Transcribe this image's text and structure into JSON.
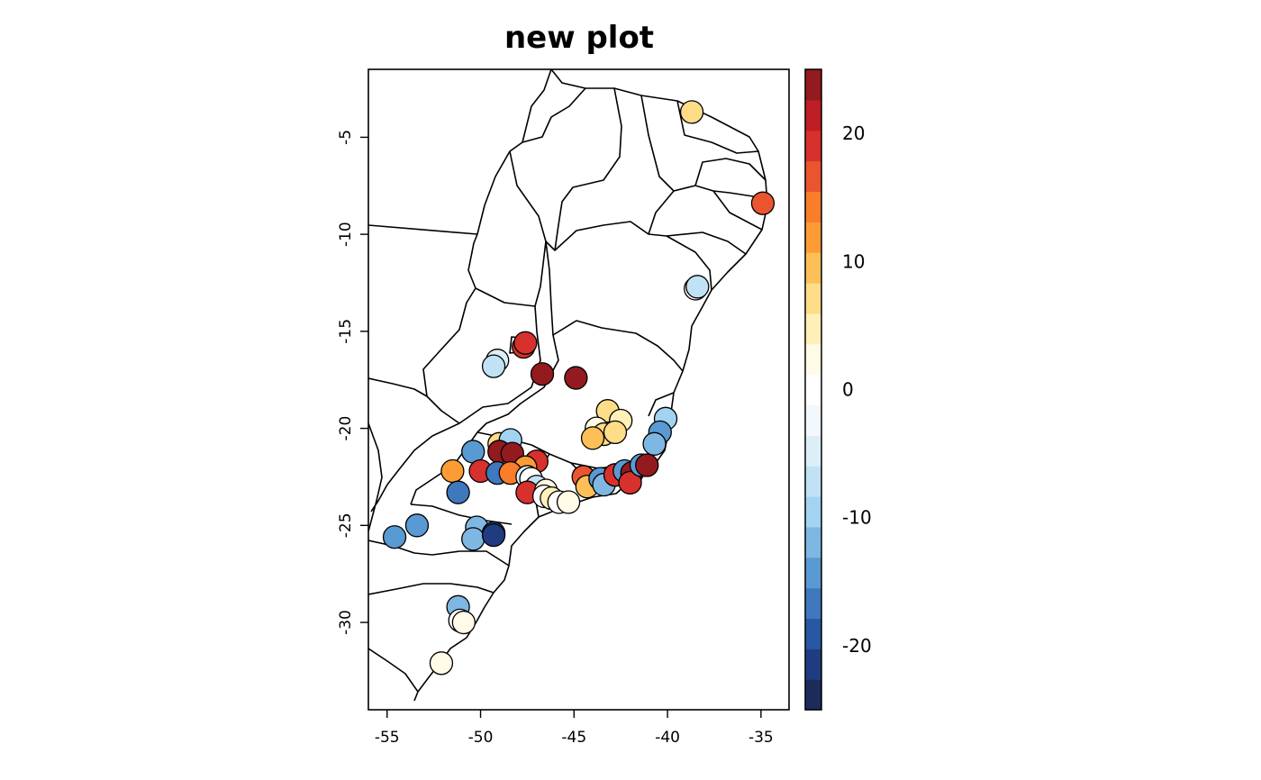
{
  "title": "new plot",
  "map": {
    "xlim": [
      -56,
      -33.5
    ],
    "ylim": [
      -34.5,
      -1.5
    ],
    "x_ticks": [
      -55,
      -50,
      -45,
      -40,
      -35
    ],
    "y_ticks": [
      -5,
      -10,
      -15,
      -20,
      -25,
      -30
    ],
    "x_tick_labels": [
      "-55",
      "-50",
      "-45",
      "-40",
      "-35"
    ],
    "y_tick_labels": [
      "-5",
      "-10",
      "-15",
      "-20",
      "-25",
      "-30"
    ]
  },
  "colorbar": {
    "range": [
      -25,
      25
    ],
    "tick_values": [
      20,
      10,
      0,
      -10,
      -20
    ],
    "tick_labels": [
      "20",
      "10",
      "0",
      "-10",
      "-20"
    ],
    "colors_low_to_high": [
      "#1c2b5a",
      "#1f3c80",
      "#2a57a4",
      "#3f78bd",
      "#5a9ad2",
      "#7fb7e3",
      "#a2d3f1",
      "#c0e2f4",
      "#dceff8",
      "#f2f8fc",
      "#ffffff",
      "#fffbe6",
      "#fff0b8",
      "#fedd88",
      "#fdbf57",
      "#fd9c35",
      "#f97d2a",
      "#ea5530",
      "#d6312c",
      "#be1e25",
      "#931a1e"
    ]
  },
  "points": [
    {
      "lon": -38.7,
      "lat": -3.7,
      "value": 6
    },
    {
      "lon": -34.9,
      "lat": -8.4,
      "value": 16
    },
    {
      "lon": -38.5,
      "lat": -12.8,
      "value": 1
    },
    {
      "lon": -38.4,
      "lat": -12.7,
      "value": -8
    },
    {
      "lon": -47.7,
      "lat": -15.8,
      "value": 19
    },
    {
      "lon": -47.6,
      "lat": -15.6,
      "value": 20
    },
    {
      "lon": -49.1,
      "lat": -16.5,
      "value": -5
    },
    {
      "lon": -49.3,
      "lat": -16.8,
      "value": -7
    },
    {
      "lon": -46.7,
      "lat": -17.2,
      "value": 24
    },
    {
      "lon": -44.9,
      "lat": -17.4,
      "value": 24
    },
    {
      "lon": -43.2,
      "lat": -19.1,
      "value": 7
    },
    {
      "lon": -42.5,
      "lat": -19.6,
      "value": 5
    },
    {
      "lon": -43.8,
      "lat": -20.0,
      "value": 2
    },
    {
      "lon": -43.4,
      "lat": -20.3,
      "value": 6
    },
    {
      "lon": -42.8,
      "lat": -20.2,
      "value": 8
    },
    {
      "lon": -44.0,
      "lat": -20.5,
      "value": 10
    },
    {
      "lon": -40.1,
      "lat": -19.5,
      "value": -10
    },
    {
      "lon": -40.4,
      "lat": -20.2,
      "value": -14
    },
    {
      "lon": -40.7,
      "lat": -20.8,
      "value": -12
    },
    {
      "lon": -49.0,
      "lat": -20.8,
      "value": 8
    },
    {
      "lon": -48.4,
      "lat": -20.6,
      "value": -9
    },
    {
      "lon": -50.4,
      "lat": -21.2,
      "value": -14
    },
    {
      "lon": -49.0,
      "lat": -21.2,
      "value": 23
    },
    {
      "lon": -48.3,
      "lat": -21.3,
      "value": 23
    },
    {
      "lon": -47.0,
      "lat": -21.7,
      "value": 20
    },
    {
      "lon": -47.6,
      "lat": -22.0,
      "value": 13
    },
    {
      "lon": -51.5,
      "lat": -22.2,
      "value": 12
    },
    {
      "lon": -50.0,
      "lat": -22.2,
      "value": 20
    },
    {
      "lon": -49.1,
      "lat": -22.3,
      "value": -16
    },
    {
      "lon": -48.4,
      "lat": -22.3,
      "value": 14
    },
    {
      "lon": -47.5,
      "lat": -22.5,
      "value": -4
    },
    {
      "lon": -47.3,
      "lat": -22.6,
      "value": 0
    },
    {
      "lon": -47.0,
      "lat": -23.0,
      "value": -6
    },
    {
      "lon": -51.2,
      "lat": -23.3,
      "value": -17
    },
    {
      "lon": -47.5,
      "lat": -23.3,
      "value": 20
    },
    {
      "lon": -46.5,
      "lat": -23.2,
      "value": 2
    },
    {
      "lon": -46.6,
      "lat": -23.5,
      "value": 0
    },
    {
      "lon": -46.2,
      "lat": -23.6,
      "value": 4
    },
    {
      "lon": -45.8,
      "lat": -23.8,
      "value": 1
    },
    {
      "lon": -45.3,
      "lat": -23.8,
      "value": 2
    },
    {
      "lon": -44.5,
      "lat": -22.5,
      "value": 16
    },
    {
      "lon": -44.3,
      "lat": -23.0,
      "value": 10
    },
    {
      "lon": -43.6,
      "lat": -22.6,
      "value": -14
    },
    {
      "lon": -43.4,
      "lat": -22.9,
      "value": -12
    },
    {
      "lon": -42.8,
      "lat": -22.4,
      "value": 18
    },
    {
      "lon": -42.3,
      "lat": -22.2,
      "value": -15
    },
    {
      "lon": -41.9,
      "lat": -22.3,
      "value": 23
    },
    {
      "lon": -42.0,
      "lat": -22.8,
      "value": 20
    },
    {
      "lon": -41.4,
      "lat": -21.9,
      "value": -15
    },
    {
      "lon": -41.1,
      "lat": -21.9,
      "value": 24
    },
    {
      "lon": -54.6,
      "lat": -25.6,
      "value": -15
    },
    {
      "lon": -53.4,
      "lat": -25.0,
      "value": -14
    },
    {
      "lon": -50.2,
      "lat": -25.1,
      "value": -13
    },
    {
      "lon": -50.4,
      "lat": -25.7,
      "value": -11
    },
    {
      "lon": -49.3,
      "lat": -25.4,
      "value": -20
    },
    {
      "lon": -49.3,
      "lat": -25.5,
      "value": -22
    },
    {
      "lon": -51.2,
      "lat": -29.2,
      "value": -11
    },
    {
      "lon": -51.1,
      "lat": -29.9,
      "value": 1
    },
    {
      "lon": -50.9,
      "lat": -30.0,
      "value": 3
    },
    {
      "lon": -52.1,
      "lat": -32.1,
      "value": 2
    }
  ]
}
